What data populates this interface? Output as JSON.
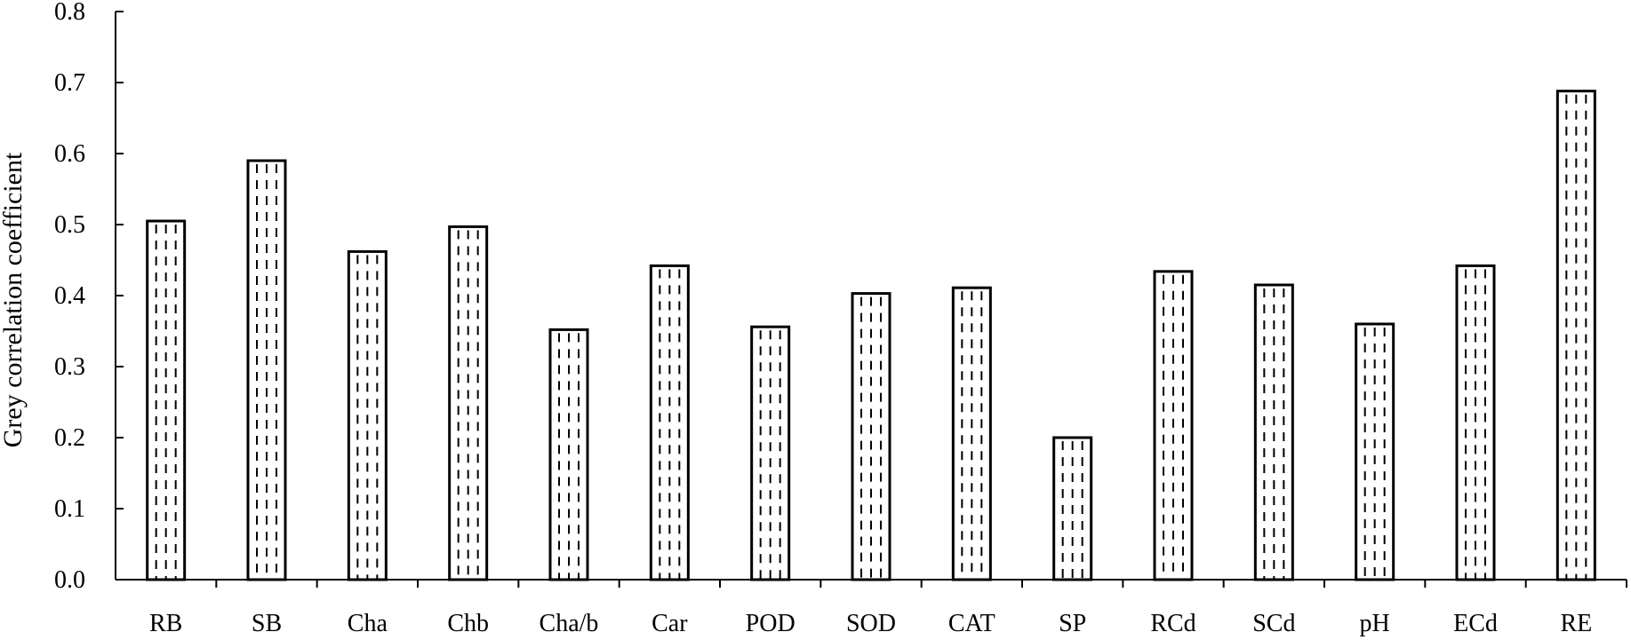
{
  "chart_data": {
    "type": "bar",
    "title": "",
    "xlabel": "",
    "ylabel": "Grey correlation coefficient",
    "categories": [
      "RB",
      "SB",
      "Cha",
      "Chb",
      "Cha/b",
      "Car",
      "POD",
      "SOD",
      "CAT",
      "SP",
      "RCd",
      "SCd",
      "pH",
      "ECd",
      "RE"
    ],
    "values": [
      0.505,
      0.59,
      0.462,
      0.497,
      0.352,
      0.442,
      0.356,
      0.403,
      0.411,
      0.2,
      0.434,
      0.415,
      0.36,
      0.442,
      0.688
    ],
    "ylim": [
      0,
      0.8
    ],
    "yticks": [
      "0.0",
      "0.1",
      "0.2",
      "0.3",
      "0.4",
      "0.5",
      "0.6",
      "0.7",
      "0.8"
    ],
    "grid": false,
    "legend": "none",
    "bar_pattern": "vertical dashed lines",
    "colors": {
      "bar_stroke": "#000000",
      "bar_fill": "#ffffff",
      "axis": "#000000"
    }
  }
}
